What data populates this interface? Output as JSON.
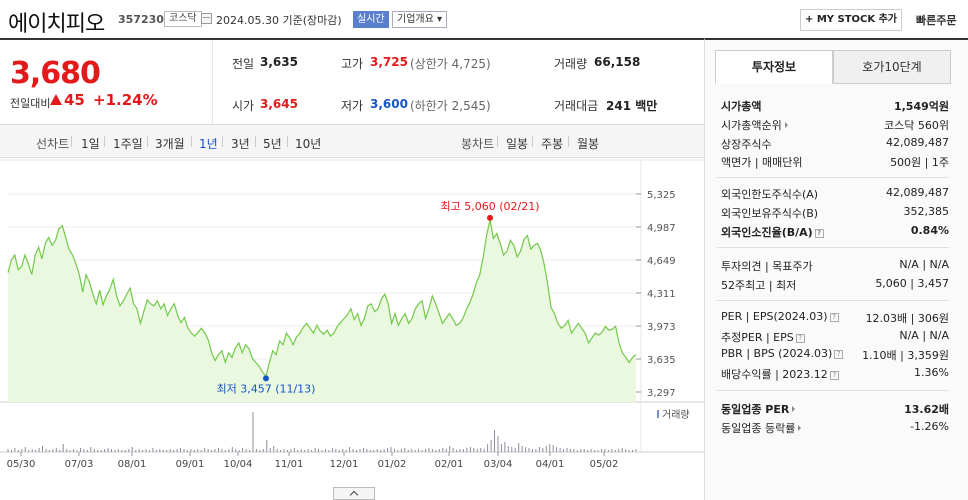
{
  "header": {
    "stock_name": "에이치피오",
    "code": "357230",
    "market": "코스닥",
    "date_text": "2024.05.30 기준(장마감)",
    "realtime": "실시간",
    "company_info": "기업개요 ▾",
    "mystock": "+ MY STOCK 추가",
    "quick_order": "빠른주문"
  },
  "quote": {
    "now": "3,680",
    "diff_label": "전일대비",
    "diff": "45",
    "rate": "+1.24%",
    "prev_label": "전일",
    "prev": "3,635",
    "high_label": "고가",
    "high": "3,725",
    "upper_limit": "(상한가 4,725)",
    "volume_label": "거래량",
    "volume": "66,158",
    "open_label": "시가",
    "open": "3,645",
    "low_label": "저가",
    "low": "3,600",
    "lower_limit": "(하한가 2,545)",
    "amount_label": "거래대금",
    "amount": "241 백만"
  },
  "tabs": {
    "line_title": "선차트",
    "line": [
      "1일",
      "1주일",
      "3개월",
      "1년",
      "3년",
      "5년",
      "10년"
    ],
    "candle_title": "봉차트",
    "candle": [
      "일봉",
      "주봉",
      "월봉"
    ]
  },
  "chart_data": {
    "type": "line",
    "title": "",
    "ylabel": "",
    "y_ticks": [
      "5,325",
      "4,987",
      "4,649",
      "4,311",
      "3,973",
      "3,635",
      "3,297"
    ],
    "ylim": [
      3297,
      5325
    ],
    "x_ticks": [
      "05/30",
      "07/03",
      "08/01",
      "09/01",
      "10/04",
      "11/01",
      "12/01",
      "01/02",
      "02/01",
      "03/04",
      "04/01",
      "05/02"
    ],
    "high_annotation": "최고 5,060 (02/21)",
    "low_annotation": "최저 3,457 (11/13)",
    "volume_label": "거래량",
    "series": [
      {
        "values": [
          4520,
          4650,
          4700,
          4550,
          4580,
          4700,
          4610,
          4500,
          4700,
          4780,
          4660,
          4820,
          4880,
          4800,
          4850,
          4970,
          5000,
          4880,
          4760,
          4700,
          4610,
          4500,
          4320,
          4500,
          4420,
          4300,
          4200,
          4340,
          4190,
          4280,
          4350,
          4450,
          4280,
          4180,
          4230,
          4300,
          4360,
          4200,
          4150,
          4000,
          4120,
          4240,
          4200,
          4180,
          4230,
          4150,
          4200,
          4080,
          4150,
          4200,
          4080,
          4010,
          4060,
          3950,
          3900,
          3870,
          3910,
          3950,
          3900,
          3830,
          3700,
          3620,
          3680,
          3720,
          3600,
          3700,
          3650,
          3750,
          3800,
          3700,
          3780,
          3740,
          3640,
          3600,
          3560,
          3500,
          3457,
          3600,
          3720,
          3680,
          3820,
          3780,
          3900,
          3850,
          3780,
          3860,
          3900,
          3960,
          4000,
          3950,
          3900,
          3980,
          3920,
          3890,
          3930,
          3870,
          3900,
          3970,
          4010,
          4050,
          4090,
          4150,
          4040,
          4100,
          3980,
          4050,
          4180,
          4200,
          4120,
          4150,
          4250,
          4300,
          4200,
          4000,
          4100,
          3980,
          4050,
          4100,
          4000,
          4050,
          4150,
          4200,
          4230,
          4050,
          4150,
          4280,
          4200,
          4100,
          4000,
          4050,
          4100,
          4050,
          3980,
          4000,
          4050,
          4140,
          4210,
          4300,
          4420,
          4500,
          4680,
          4900,
          5060,
          4870,
          4920,
          4820,
          4700,
          4740,
          4850,
          4800,
          4680,
          4740,
          4860,
          4900,
          4760,
          4800,
          4820,
          4740,
          4600,
          4400,
          4160,
          4100,
          4000,
          3950,
          3980,
          4030,
          3900,
          3950,
          4000,
          3950,
          3900,
          3800,
          3850,
          3900,
          3880,
          3910,
          3970,
          3930,
          3940,
          3970,
          3800,
          3700,
          3650,
          3600,
          3650,
          3680
        ]
      }
    ]
  },
  "info": {
    "tab_active": "투자정보",
    "tab_other": "호가10단계",
    "market_cap_label": "시가총액",
    "market_cap": "1,549억원",
    "rank_label": "시가총액순위",
    "rank": "코스닥 560위",
    "shares_label": "상장주식수",
    "shares": "42,089,487",
    "par_label": "액면가 | 매매단위",
    "par": "500원 | 1주",
    "foreign_limit_label": "외국인한도주식수(A)",
    "foreign_limit": "42,089,487",
    "foreign_hold_label": "외국인보유주식수(B)",
    "foreign_hold": "352,385",
    "foreign_ratio_label": "외국인소진율(B/A)",
    "foreign_ratio": "0.84%",
    "opinion_label": "투자의견 | 목표주가",
    "opinion": "N/A | N/A",
    "week52_label": "52주최고 | 최저",
    "week52": "5,060 | 3,457",
    "per_label": "PER | EPS(2024.03)",
    "per": "12.03배 | 306원",
    "est_per_label": "추정PER | EPS",
    "est_per": "N/A | N/A",
    "pbr_label": "PBR | BPS (2024.03)",
    "pbr": "1.10배 | 3,359원",
    "div_label": "배당수익률 | 2023.12",
    "div": "1.36%",
    "sector_per_label": "동일업종 PER",
    "sector_per": "13.62배",
    "sector_rate_label": "동일업종 등락률",
    "sector_rate": "-1.26%"
  },
  "colors": {
    "up": "#e21a1a",
    "down": "#1756c5",
    "line": "#73c94a",
    "fill": "#e9f8de"
  }
}
